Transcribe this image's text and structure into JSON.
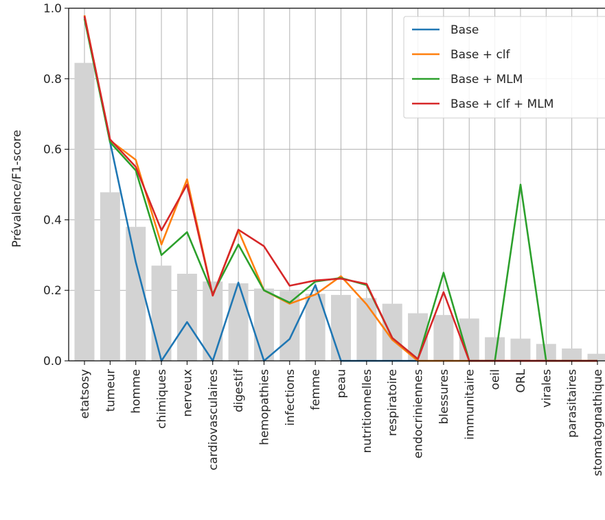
{
  "chart_data": {
    "type": "bar+line",
    "ylabel": "Prévalence/F1-score",
    "xlabel": "",
    "ylim": [
      0,
      1.0
    ],
    "yticks": [
      0.0,
      0.2,
      0.4,
      0.6,
      0.8,
      1.0
    ],
    "ytick_labels": [
      "0.0",
      "0.2",
      "0.4",
      "0.6",
      "0.8",
      "1.0"
    ],
    "grid": true,
    "legend_position": "top-right",
    "categories": [
      "etatsosy",
      "tumeur",
      "homme",
      "chimiques",
      "nerveux",
      "cardiovasculaires",
      "digestif",
      "hemopathies",
      "infections",
      "femme",
      "peau",
      "nutritionnelles",
      "respiratoire",
      "endocriniennes",
      "blessures",
      "immunitaire",
      "oeil",
      "ORL",
      "virales",
      "parasitaires",
      "stomatognathique"
    ],
    "bars": {
      "color": "#d3d3d3",
      "values": [
        0.845,
        0.478,
        0.38,
        0.27,
        0.247,
        0.225,
        0.22,
        0.205,
        0.198,
        0.19,
        0.187,
        0.178,
        0.162,
        0.135,
        0.13,
        0.12,
        0.067,
        0.063,
        0.048,
        0.035,
        0.02
      ]
    },
    "series": [
      {
        "name": "Base",
        "color": "#1f77b4",
        "values": [
          0.975,
          0.62,
          0.28,
          0.0,
          0.11,
          0.0,
          0.222,
          0.0,
          0.062,
          0.215,
          0.0,
          0.0,
          0.0,
          0.0,
          0.0,
          0.0,
          0.0,
          0.0,
          0.0,
          0.0,
          0.0
        ]
      },
      {
        "name": "Base + clf",
        "color": "#ff7f0e",
        "values": [
          0.98,
          0.625,
          0.57,
          0.33,
          0.515,
          0.185,
          0.37,
          0.2,
          0.162,
          0.188,
          0.24,
          0.16,
          0.06,
          0.0,
          0.0,
          0.0,
          0.0,
          0.0,
          0.0,
          0.0,
          0.0
        ]
      },
      {
        "name": "Base + MLM",
        "color": "#2ca02c",
        "values": [
          0.97,
          0.62,
          0.54,
          0.3,
          0.365,
          0.19,
          0.33,
          0.2,
          0.165,
          0.225,
          0.235,
          0.215,
          0.065,
          0.005,
          0.25,
          0.0,
          0.0,
          0.5,
          0.0,
          0.0,
          0.0
        ]
      },
      {
        "name": "Base + clf + MLM",
        "color": "#d62728",
        "values": [
          0.978,
          0.628,
          0.55,
          0.37,
          0.5,
          0.185,
          0.372,
          0.325,
          0.213,
          0.228,
          0.233,
          0.218,
          0.065,
          0.005,
          0.195,
          0.0,
          0.0,
          0.0,
          0.0,
          0.0,
          0.0
        ]
      }
    ]
  }
}
